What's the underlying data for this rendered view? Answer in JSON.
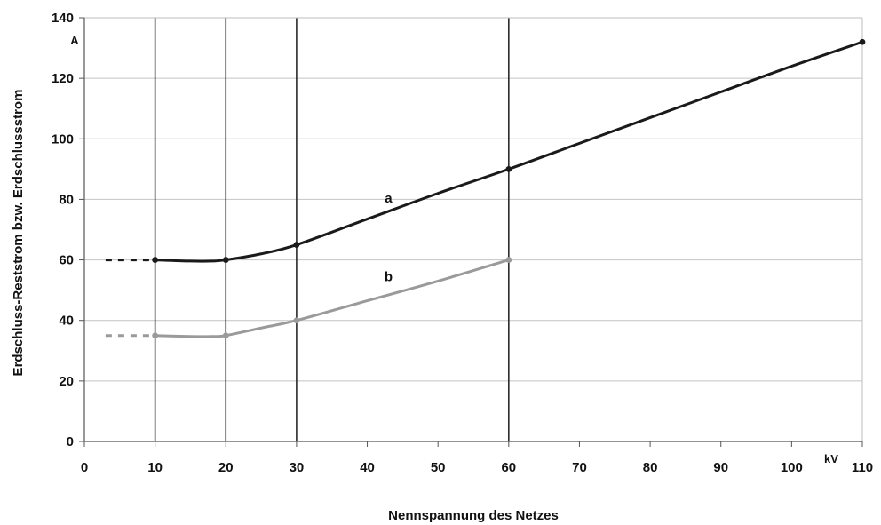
{
  "chart_data": {
    "type": "line",
    "title": "",
    "xlabel": "Nennspannung des Netzes",
    "ylabel": "Erdschluss-Reststrom bzw. Erdschlussstrom",
    "x_unit": "kV",
    "y_unit": "A",
    "xlim": [
      0,
      110
    ],
    "ylim": [
      0,
      140
    ],
    "x_ticks": [
      "0",
      "10",
      "20",
      "30",
      "40",
      "50",
      "60",
      "70",
      "80",
      "90",
      "100",
      "110"
    ],
    "y_ticks": [
      "0",
      "20",
      "40",
      "60",
      "80",
      "100",
      "120",
      "140"
    ],
    "grid": "horizontal",
    "reference_lines_x": [
      10,
      20,
      30,
      60
    ],
    "series": [
      {
        "name": "a",
        "color": "#1a1a1a",
        "points": [
          [
            10,
            60
          ],
          [
            15,
            59.6
          ],
          [
            18,
            59.6
          ],
          [
            20,
            60
          ],
          [
            25,
            62
          ],
          [
            30,
            65
          ],
          [
            40,
            73.5
          ],
          [
            50,
            82
          ],
          [
            60,
            90
          ],
          [
            70,
            98.5
          ],
          [
            80,
            107
          ],
          [
            90,
            115.5
          ],
          [
            100,
            124
          ],
          [
            110,
            132
          ]
        ],
        "dashed_extension": [
          [
            3,
            60
          ],
          [
            10,
            60
          ]
        ],
        "markers": [
          [
            10,
            60
          ],
          [
            20,
            60
          ],
          [
            30,
            65
          ],
          [
            60,
            90
          ],
          [
            110,
            132
          ]
        ]
      },
      {
        "name": "b",
        "color": "#9a9a9a",
        "points": [
          [
            10,
            35
          ],
          [
            15,
            34.7
          ],
          [
            18,
            34.7
          ],
          [
            20,
            35
          ],
          [
            25,
            37.5
          ],
          [
            30,
            40
          ],
          [
            40,
            46.5
          ],
          [
            50,
            53
          ],
          [
            60,
            60
          ]
        ],
        "dashed_extension": [
          [
            3,
            35
          ],
          [
            10,
            35
          ]
        ],
        "markers": [
          [
            10,
            35
          ],
          [
            20,
            35
          ],
          [
            30,
            40
          ],
          [
            60,
            60
          ]
        ]
      }
    ],
    "annotations": [
      {
        "text": "a",
        "x": 43,
        "y": 79
      },
      {
        "text": "b",
        "x": 43,
        "y": 53
      }
    ]
  }
}
